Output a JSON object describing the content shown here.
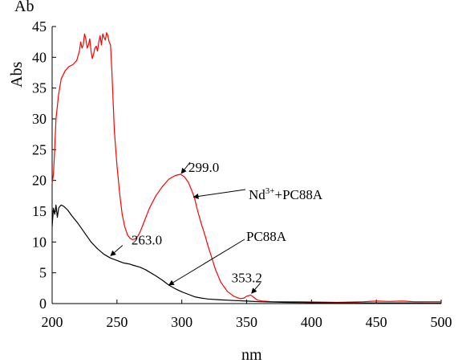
{
  "chart_data": {
    "type": "line",
    "title": "",
    "xlabel": "nm",
    "ylabel": "Abs",
    "ylabel_top_fragment": "Ab",
    "xlim": [
      200,
      500
    ],
    "ylim": [
      0,
      45
    ],
    "xticks": [
      200,
      250,
      300,
      350,
      400,
      450,
      500
    ],
    "yticks": [
      0,
      5,
      10,
      15,
      20,
      25,
      30,
      35,
      40,
      45
    ],
    "grid": false,
    "series": [
      {
        "name": "Nd3++PC88A",
        "color": "#ff0000",
        "points": [
          [
            200,
            19.5
          ],
          [
            201,
            21
          ],
          [
            202,
            25
          ],
          [
            203,
            30
          ],
          [
            205,
            34
          ],
          [
            207,
            36.5
          ],
          [
            210,
            37.8
          ],
          [
            213,
            38.5
          ],
          [
            216,
            38.8
          ],
          [
            219,
            39.5
          ],
          [
            221,
            41
          ],
          [
            222,
            42.5
          ],
          [
            223,
            41.5
          ],
          [
            224,
            42
          ],
          [
            225,
            43.8
          ],
          [
            226,
            43
          ],
          [
            227,
            41.5
          ],
          [
            228,
            42
          ],
          [
            229,
            43
          ],
          [
            230,
            41
          ],
          [
            231,
            39.8
          ],
          [
            232,
            40.5
          ],
          [
            233,
            41.5
          ],
          [
            234,
            41.8
          ],
          [
            235,
            41
          ],
          [
            236,
            42.5
          ],
          [
            237,
            43.5
          ],
          [
            238,
            42
          ],
          [
            239,
            43.8
          ],
          [
            240,
            43.2
          ],
          [
            241,
            42.8
          ],
          [
            242,
            44
          ],
          [
            243,
            43.5
          ],
          [
            244,
            42.5
          ],
          [
            245,
            42
          ],
          [
            246,
            38
          ],
          [
            247,
            33
          ],
          [
            248,
            28
          ],
          [
            250,
            22.5
          ],
          [
            252,
            18
          ],
          [
            254,
            14.5
          ],
          [
            256,
            12.5
          ],
          [
            258,
            11.2
          ],
          [
            260,
            10.6
          ],
          [
            262,
            10.4
          ],
          [
            264,
            10.5
          ],
          [
            266,
            10.9
          ],
          [
            268,
            11.7
          ],
          [
            270,
            12.8
          ],
          [
            275,
            15.5
          ],
          [
            280,
            17.5
          ],
          [
            285,
            19
          ],
          [
            290,
            20.2
          ],
          [
            295,
            20.8
          ],
          [
            299,
            21
          ],
          [
            302,
            20.6
          ],
          [
            305,
            19.7
          ],
          [
            308,
            18.2
          ],
          [
            310,
            17
          ],
          [
            312,
            15.2
          ],
          [
            315,
            13
          ],
          [
            318,
            11
          ],
          [
            320,
            9.5
          ],
          [
            323,
            7.5
          ],
          [
            326,
            5.5
          ],
          [
            330,
            3.5
          ],
          [
            335,
            2
          ],
          [
            340,
            1.2
          ],
          [
            345,
            0.8
          ],
          [
            348,
            0.9
          ],
          [
            350,
            1.2
          ],
          [
            352,
            1.3
          ],
          [
            353,
            1.4
          ],
          [
            355,
            1.1
          ],
          [
            358,
            0.6
          ],
          [
            362,
            0.4
          ],
          [
            370,
            0.3
          ],
          [
            390,
            0.3
          ],
          [
            420,
            0.2
          ],
          [
            440,
            0.3
          ],
          [
            450,
            0.4
          ],
          [
            460,
            0.35
          ],
          [
            470,
            0.4
          ],
          [
            480,
            0.3
          ],
          [
            500,
            0.3
          ]
        ]
      },
      {
        "name": "PC88A",
        "color": "#000000",
        "points": [
          [
            200,
            12.5
          ],
          [
            201,
            15.5
          ],
          [
            202,
            14.5
          ],
          [
            203,
            16
          ],
          [
            204,
            14
          ],
          [
            205,
            15.5
          ],
          [
            206,
            15.8
          ],
          [
            207,
            16
          ],
          [
            209,
            15.8
          ],
          [
            212,
            15.2
          ],
          [
            215,
            14.3
          ],
          [
            220,
            13
          ],
          [
            225,
            11.5
          ],
          [
            230,
            10
          ],
          [
            235,
            8.9
          ],
          [
            240,
            8
          ],
          [
            245,
            7.4
          ],
          [
            250,
            7
          ],
          [
            255,
            6.6
          ],
          [
            260,
            6.4
          ],
          [
            263,
            6.2
          ],
          [
            268,
            5.9
          ],
          [
            272,
            5.5
          ],
          [
            276,
            5
          ],
          [
            280,
            4.5
          ],
          [
            285,
            3.8
          ],
          [
            290,
            3
          ],
          [
            295,
            2.4
          ],
          [
            300,
            1.9
          ],
          [
            305,
            1.5
          ],
          [
            310,
            1.1
          ],
          [
            315,
            0.9
          ],
          [
            320,
            0.75
          ],
          [
            330,
            0.6
          ],
          [
            340,
            0.5
          ],
          [
            350,
            0.4
          ],
          [
            360,
            0.3
          ],
          [
            380,
            0.2
          ],
          [
            400,
            0.15
          ],
          [
            420,
            0.12
          ],
          [
            450,
            0.1
          ],
          [
            475,
            0.1
          ],
          [
            500,
            0.08
          ]
        ]
      }
    ],
    "annotations": [
      {
        "text": "299.0",
        "x": 299,
        "y": 21
      },
      {
        "text": "263.0",
        "x": 263,
        "y": 6.2
      },
      {
        "text": "353.2",
        "x": 353.2,
        "y": 1.4
      }
    ],
    "legend_labels": [
      {
        "series": "Nd3++PC88A",
        "base": "Nd",
        "sup": "3+",
        "rest": "+PC88A"
      },
      {
        "series": "PC88A",
        "text": "PC88A"
      }
    ]
  }
}
